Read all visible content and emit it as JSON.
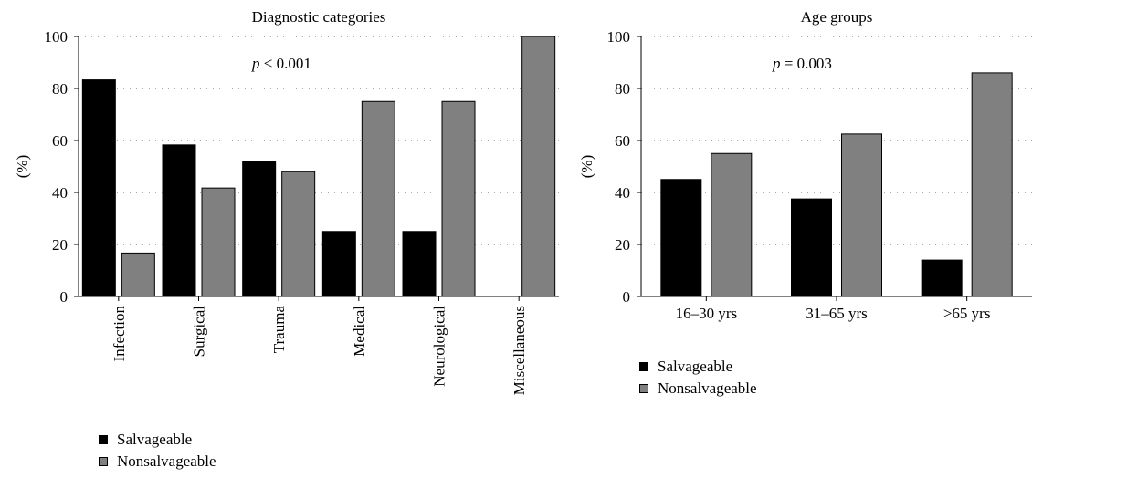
{
  "legend": {
    "items": [
      {
        "label": "Salvageable",
        "color": "#000000"
      },
      {
        "label": "Nonsalvageable",
        "color": "#808080"
      }
    ]
  },
  "chart_data": [
    {
      "type": "bar",
      "title": "Diagnostic categories",
      "ylabel": "(%)",
      "xlabel": "",
      "annotation": {
        "italic": "p",
        "rest": " < 0.001"
      },
      "ylim": [
        0,
        100
      ],
      "yticks": [
        0,
        20,
        40,
        60,
        80,
        100
      ],
      "grid": "horizontal-dotted",
      "categories": [
        "Infection",
        "Surgical",
        "Trauma",
        "Medical",
        "Neurological",
        "Miscellaneous"
      ],
      "series": [
        {
          "name": "Salvageable",
          "color": "#000000",
          "values": [
            83.3,
            58.3,
            52,
            25,
            25,
            0
          ]
        },
        {
          "name": "Nonsalvageable",
          "color": "#808080",
          "values": [
            16.7,
            41.7,
            48,
            75,
            75,
            100
          ]
        }
      ],
      "legend_position": "bottom-left"
    },
    {
      "type": "bar",
      "title": "Age groups",
      "ylabel": "(%)",
      "xlabel": "",
      "annotation": {
        "italic": "p",
        "rest": " = 0.003"
      },
      "ylim": [
        0,
        100
      ],
      "yticks": [
        0,
        20,
        40,
        60,
        80,
        100
      ],
      "grid": "horizontal-dotted",
      "categories": [
        "16–30 yrs",
        "31–65 yrs",
        ">65 yrs"
      ],
      "series": [
        {
          "name": "Salvageable",
          "color": "#000000",
          "values": [
            45,
            37.5,
            14
          ]
        },
        {
          "name": "Nonsalvageable",
          "color": "#808080",
          "values": [
            55,
            62.5,
            86
          ]
        }
      ],
      "legend_position": "bottom-left"
    }
  ]
}
